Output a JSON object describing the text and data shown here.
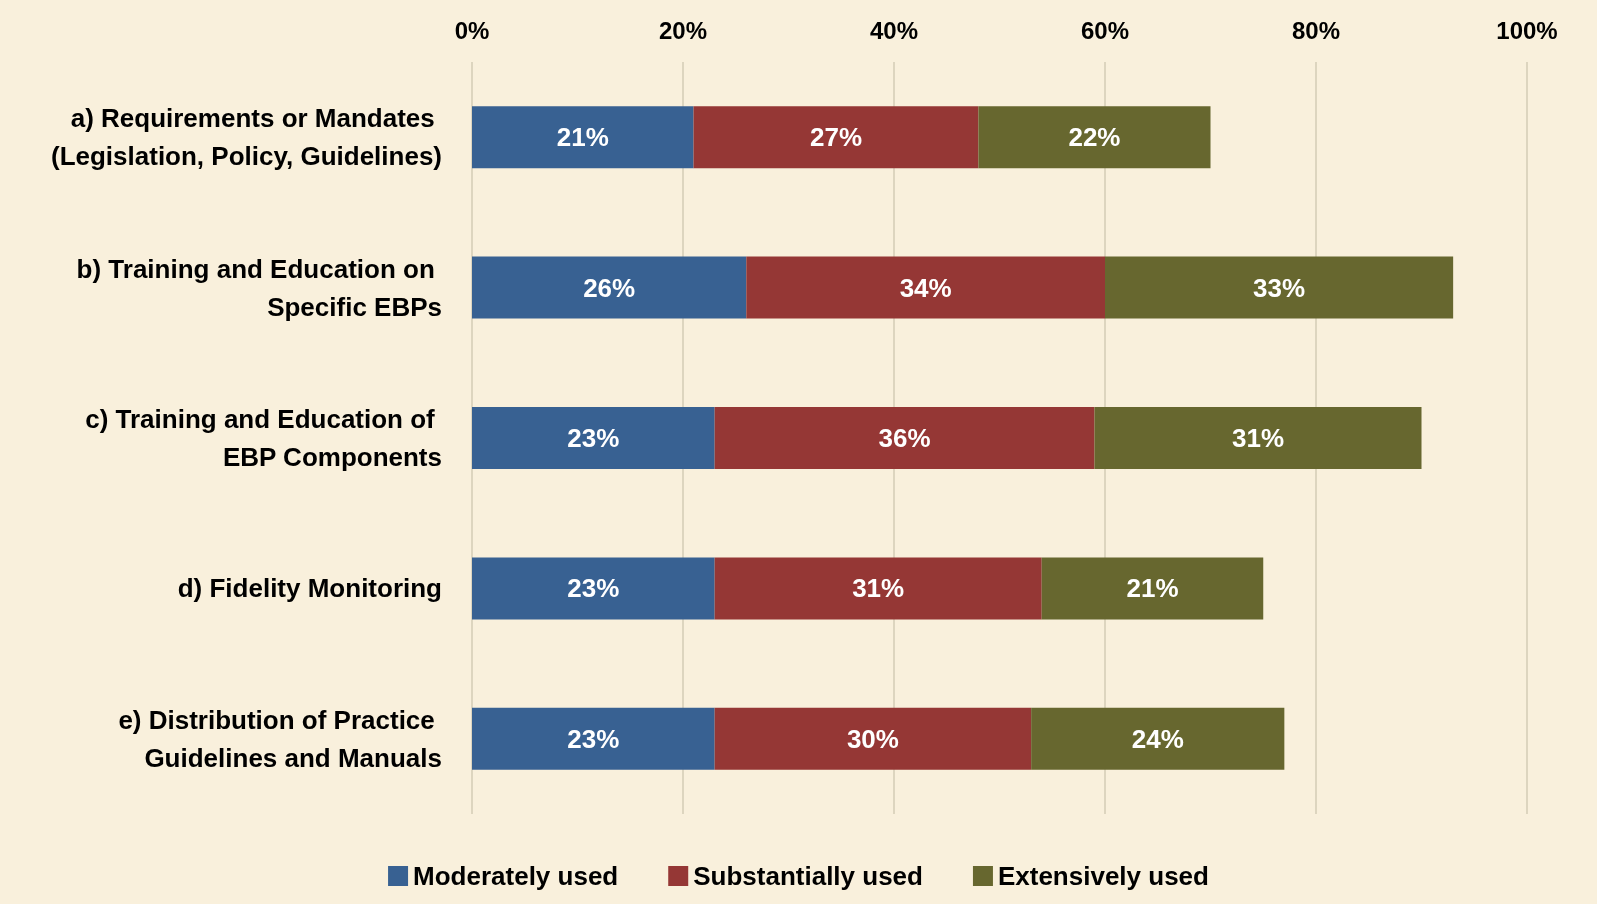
{
  "chart_data": {
    "type": "bar",
    "orientation": "horizontal",
    "stacked": true,
    "categories": [
      "a) Requirements or Mandates (Legislation, Policy, Guidelines)",
      "b) Training and Education on Specific EBPs",
      "c) Training and Education of EBP Components",
      "d) Fidelity Monitoring",
      "e) Distribution of Practice Guidelines and Manuals"
    ],
    "series": [
      {
        "name": "Moderately used",
        "color": "#386192",
        "values": [
          21,
          26,
          23,
          23,
          23
        ],
        "value_labels": [
          "21%",
          "26%",
          "23%",
          "23%",
          "23%"
        ]
      },
      {
        "name": "Substantially used",
        "color": "#953735",
        "values": [
          27,
          34,
          36,
          31,
          30
        ],
        "value_labels": [
          "27%",
          "34%",
          "36%",
          "31%",
          "30%"
        ]
      },
      {
        "name": "Extensively used",
        "color": "#67672f",
        "values": [
          22,
          33,
          31,
          21,
          24
        ],
        "value_labels": [
          "22%",
          "33%",
          "31%",
          "21%",
          "24%"
        ]
      }
    ],
    "xlim": [
      0,
      100
    ],
    "xticks": [
      {
        "value": 0,
        "label": "0%"
      },
      {
        "value": 20,
        "label": "20%"
      },
      {
        "value": 40,
        "label": "40%"
      },
      {
        "value": 60,
        "label": "60%"
      },
      {
        "value": 80,
        "label": "80%"
      },
      {
        "value": 100,
        "label": "100%"
      }
    ],
    "grid": "x",
    "legend": "bottom"
  }
}
